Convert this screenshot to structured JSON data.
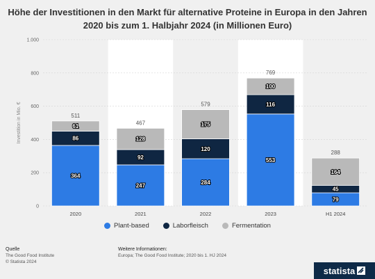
{
  "title_line1": "Höhe der Investitionen in den Markt für alternative Proteine in Europa in den Jahren",
  "title_line2": "2020 bis zum 1. Halbjahr 2024 (in Millionen Euro)",
  "chart_data": {
    "type": "bar",
    "stacked": true,
    "categories": [
      "2020",
      "2021",
      "2022",
      "2023",
      "H1 2024"
    ],
    "series": [
      {
        "name": "Plant-based",
        "color": "#2d7be4",
        "values": [
          364,
          247,
          284,
          553,
          79
        ]
      },
      {
        "name": "Laborfleisch",
        "color": "#0f2642",
        "values": [
          86,
          92,
          120,
          116,
          45
        ]
      },
      {
        "name": "Fermentation",
        "color": "#b9b9b9",
        "values": [
          61,
          128,
          175,
          100,
          164
        ]
      }
    ],
    "totals": [
      511,
      467,
      579,
      769,
      288
    ],
    "ylabel": "Investition in Mio. €",
    "xlabel": "",
    "ylim": [
      0,
      1000
    ],
    "yticks": [
      0,
      200,
      400,
      600,
      800,
      1000
    ],
    "ytick_labels": [
      "0",
      "200",
      "400",
      "600",
      "800",
      "1.000"
    ],
    "grid": true,
    "legend_position": "bottom"
  },
  "footer": {
    "source_heading": "Quelle",
    "source_lines": [
      "The Good Food Institute",
      "© Statista 2024"
    ],
    "info_heading": "Weitere Informationen:",
    "info_text": "Europa; The Good Food Institute; 2020 bis 1. HJ 2024"
  },
  "logo_text": "statista"
}
